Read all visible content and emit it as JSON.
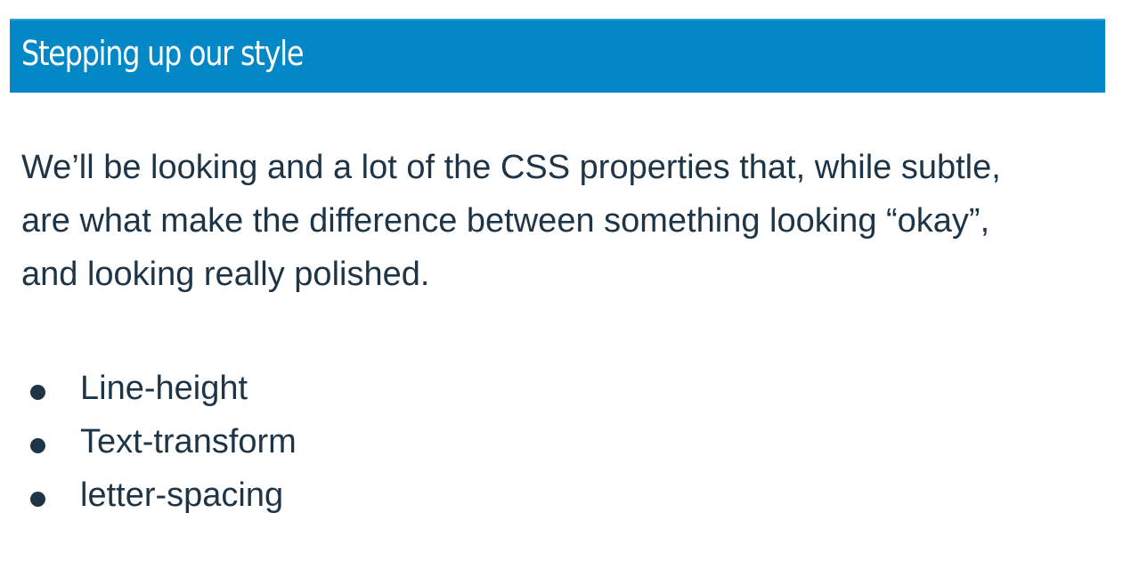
{
  "slide": {
    "title": "Stepping up our style",
    "paragraph": "We’ll be looking and a lot of the CSS properties that, while subtle, are what make the difference between something looking “okay”, and looking really polished.",
    "bullets": [
      "Line-height",
      "Text-transform",
      "letter-spacing"
    ],
    "colors": {
      "title_bar": "#0288c7",
      "title_text": "#ffffff",
      "body_text": "#1d3547"
    }
  }
}
